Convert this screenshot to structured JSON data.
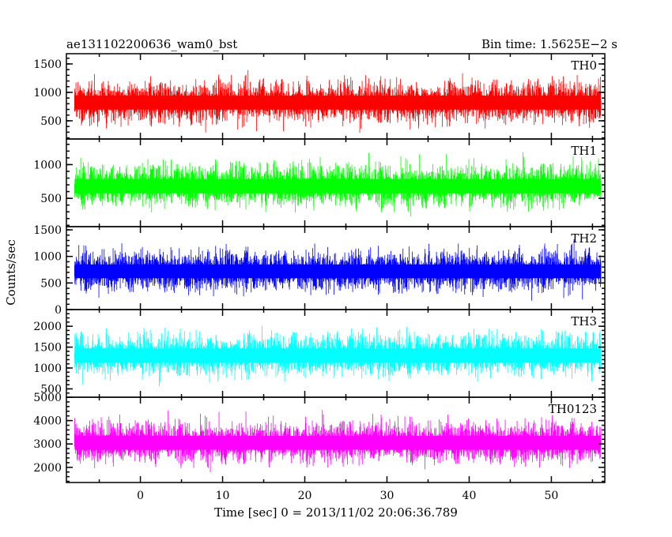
{
  "chart_data": {
    "type": "line",
    "title_left": "ae131102200636_wam0_bst",
    "title_right": "Bin time: 1.5625E−2 s",
    "xlabel": "Time [sec] 0 = 2013/11/02 20:06:36.789",
    "ylabel": "Counts/sec",
    "xlim": [
      -9,
      56.5
    ],
    "x_ticks": [
      0,
      10,
      20,
      30,
      40,
      50
    ],
    "x_tick_labels": [
      "0",
      "10",
      "20",
      "30",
      "40",
      "50"
    ],
    "data_range": [
      -8,
      56
    ],
    "bin_time": 0.015625,
    "panels": [
      {
        "name": "TH0",
        "color": "#ff0000",
        "ylim": [
          180,
          1680
        ],
        "yticks": [
          500,
          1000,
          1500
        ],
        "ytick_labels": [
          "500",
          "1000",
          "1500"
        ],
        "mean": 820,
        "min_level": 200,
        "max_level": 1650
      },
      {
        "name": "TH1",
        "color": "#00ff00",
        "ylim": [
          80,
          1380
        ],
        "yticks": [
          500,
          1000
        ],
        "ytick_labels": [
          "500",
          "1000"
        ],
        "mean": 680,
        "min_level": 100,
        "max_level": 1350
      },
      {
        "name": "TH2",
        "color": "#0000ff",
        "ylim": [
          0,
          1560
        ],
        "yticks": [
          0,
          500,
          1000,
          1500
        ],
        "ytick_labels": [
          "0",
          "500",
          "1000",
          "1500"
        ],
        "mean": 720,
        "min_level": 20,
        "max_level": 1550
      },
      {
        "name": "TH3",
        "color": "#00ffff",
        "ylim": [
          300,
          2400
        ],
        "yticks": [
          500,
          1000,
          1500,
          2000
        ],
        "ytick_labels": [
          "500",
          "1000",
          "1500",
          "2000"
        ],
        "mean": 1300,
        "min_level": 350,
        "max_level": 2350
      },
      {
        "name": "TH0123",
        "color": "#ff00ff",
        "ylim": [
          1350,
          5000
        ],
        "yticks": [
          2000,
          3000,
          4000,
          5000
        ],
        "ytick_labels": [
          "2000",
          "3000",
          "4000",
          "5000"
        ],
        "mean": 3050,
        "min_level": 1450,
        "max_level": 4950
      }
    ]
  }
}
